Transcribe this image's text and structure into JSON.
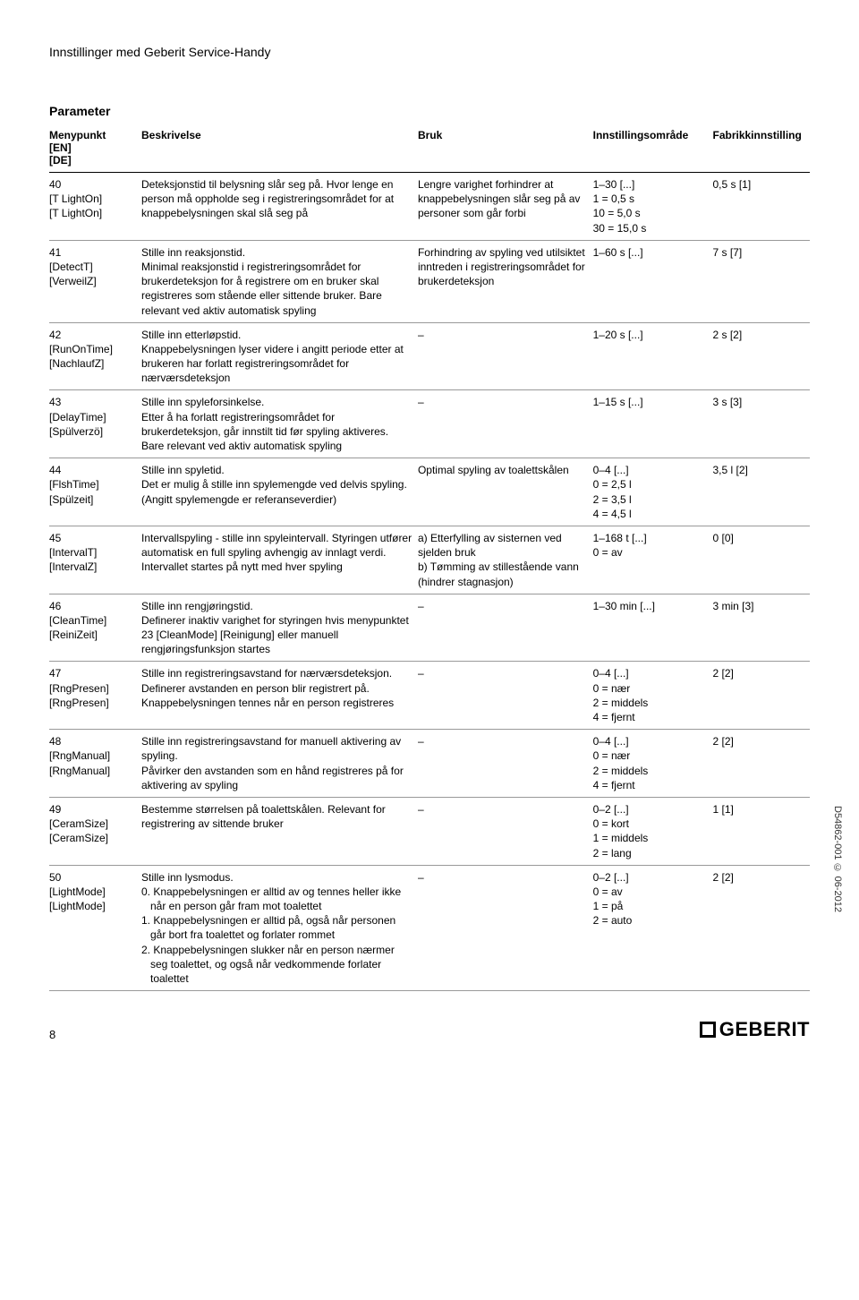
{
  "header": "Innstillinger med Geberit Service-Handy",
  "paramTitle": "Parameter",
  "columns": [
    "Menypunkt\n[EN]\n[DE]",
    "Beskrivelse",
    "Bruk",
    "Innstillingsområde",
    "Fabrikkinnstilling"
  ],
  "rows": [
    {
      "menu": "40\n[T LightOn]\n[T LightOn]",
      "besk": "Deteksjonstid til belysning slår seg på. Hvor lenge en person må oppholde seg i registreringsområdet for at knappebelysningen skal slå seg på",
      "bruk": "Lengre varighet forhindrer at knappebelysningen slår seg på av personer som går forbi",
      "inst": "1–30 [...]\n1 = 0,5 s\n10 = 5,0 s\n30 = 15,0 s",
      "fab": "0,5 s [1]"
    },
    {
      "menu": "41\n[DetectT]\n[VerweilZ]",
      "besk": "Stille inn reaksjonstid.\nMinimal reaksjonstid i registreringsområdet for brukerdeteksjon for å registrere om en bruker skal registreres som stående eller sittende bruker. Bare relevant ved aktiv automatisk spyling",
      "bruk": "Forhindring av spyling ved utilsiktet inntreden i registreringsområdet for brukerdeteksjon",
      "inst": "1–60 s [...]",
      "fab": "7 s [7]"
    },
    {
      "menu": "42\n[RunOnTime]\n[NachlaufZ]",
      "besk": "Stille inn etterløpstid.\nKnappebelysningen lyser videre i angitt periode etter at brukeren har forlatt registreringsområdet for nærværsdeteksjon",
      "bruk": "–",
      "inst": "1–20 s [...]",
      "fab": "2 s [2]"
    },
    {
      "menu": "43\n[DelayTime]\n[Spülverzö]",
      "besk": "Stille inn spyleforsinkelse.\nEtter å ha forlatt registreringsområdet for brukerdeteksjon, går innstilt tid før spyling aktiveres. Bare relevant ved aktiv automatisk spyling",
      "bruk": "–",
      "inst": "1–15 s [...]",
      "fab": "3 s [3]"
    },
    {
      "menu": "44\n[FlshTime]\n[Spülzeit]",
      "besk": "Stille inn spyletid.\nDet er mulig å stille inn spylemengde ved delvis spyling. (Angitt spylemengde er referanseverdier)",
      "bruk": "Optimal spyling av toalettskålen",
      "inst": "0–4 [...]\n0 = 2,5 l\n2 = 3,5 l\n4 = 4,5 l",
      "fab": "3,5 l [2]"
    },
    {
      "menu": "45\n[IntervalT]\n[IntervalZ]",
      "besk": "Intervallspyling - stille inn spyleintervall. Styringen utfører automatisk en full spyling avhengig av innlagt verdi. Intervallet startes på nytt med hver spyling",
      "bruk": "a) Etterfylling av sisternen ved sjelden bruk\nb) Tømming av stillestående vann (hindrer stagnasjon)",
      "inst": "1–168 t [...]\n0 = av",
      "fab": "0 [0]"
    },
    {
      "menu": "46\n[CleanTime]\n[ReiniZeit]",
      "besk": "Stille inn rengjøringstid.\nDefinerer inaktiv varighet for styringen hvis menypunktet 23 [CleanMode] [Reinigung] eller manuell rengjøringsfunksjon startes",
      "bruk": "–",
      "inst": "1–30 min [...]",
      "fab": "3 min [3]"
    },
    {
      "menu": "47\n[RngPresen]\n[RngPresen]",
      "besk": "Stille inn registreringsavstand for nærværsdeteksjon.\nDefinerer avstanden en person blir registrert på. Knappebelysningen tennes når en person registreres",
      "bruk": "–",
      "inst": "0–4 [...]\n0 = nær\n2 = middels\n4 = fjernt",
      "fab": "2 [2]"
    },
    {
      "menu": "48\n[RngManual]\n[RngManual]",
      "besk": "Stille inn registreringsavstand for manuell aktivering av spyling.\nPåvirker den avstanden som en hånd registreres på for aktivering av spyling",
      "bruk": "–",
      "inst": "0–4 [...]\n0 = nær\n2 = middels\n4 = fjernt",
      "fab": "2 [2]"
    },
    {
      "menu": "49\n[CeramSize]\n[CeramSize]",
      "besk": "Bestemme størrelsen på toalettskålen. Relevant for registrering av sittende bruker",
      "bruk": "–",
      "inst": "0–2 [...]\n0 = kort\n1 = middels\n2 = lang",
      "fab": "1 [1]"
    },
    {
      "menu": "50\n[LightMode]\n[LightMode]",
      "besk": "Stille inn lysmodus.",
      "beskList": [
        "0. Knappebelysningen er alltid av og tennes heller ikke når en person går fram mot toalettet",
        "1. Knappebelysningen er alltid på, også når personen går bort fra toalettet og forlater rommet",
        "2. Knappebelysningen slukker når en person nærmer seg toalettet, og også når vedkommende forlater toalettet"
      ],
      "bruk": "–",
      "inst": "0–2 [...]\n0 = av\n1 = på\n2 = auto",
      "fab": "2 [2]"
    }
  ],
  "pageNumber": "8",
  "logoText": "GEBERIT",
  "sideText": "D54862-001 © 06-2012"
}
